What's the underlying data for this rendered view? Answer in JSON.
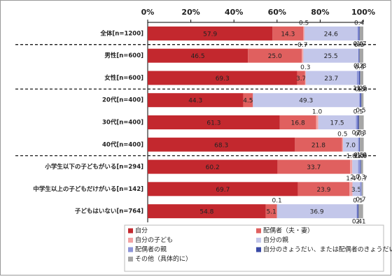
{
  "chart_data": {
    "type": "stacked-bar-horizontal",
    "categories": [
      "全体[n=1200]",
      "男性[n=600]",
      "女性[n=600]",
      "20代[n=400]",
      "30代[n=400]",
      "40代[n=400]",
      "小学生以下の子どもがいる[n=294]",
      "中学生以上の子どもだけがいる[n=142]",
      "子どもはいない[n=764]"
    ],
    "series": [
      {
        "name": "自分",
        "color": "#c3282e",
        "values": [
          57.9,
          46.5,
          69.3,
          44.3,
          61.3,
          68.3,
          60.2,
          69.7,
          54.8
        ]
      },
      {
        "name": "配偶者（夫・妻）",
        "color": "#e0605f",
        "values": [
          14.3,
          25.0,
          3.7,
          4.5,
          16.8,
          21.8,
          33.7,
          23.9,
          5.1
        ],
        "value_labels": [
          "14.3",
          "25.0",
          "3.7",
          "4.5",
          "16.8",
          "21.8",
          "33.7",
          "23.9",
          "5.1"
        ]
      },
      {
        "name": "自分の子ども",
        "color": "#f2a3a3",
        "values": [
          0.5,
          0.7,
          0.3,
          null,
          1.0,
          0.5,
          1.0,
          1.4,
          0.1
        ],
        "value_labels": [
          "0.5",
          "0.7",
          "0.3",
          null,
          "1.0",
          "0.5",
          "1.0",
          "1.4",
          "0.1"
        ]
      },
      {
        "name": "自分の親",
        "color": "#c3c7ea",
        "values": [
          24.6,
          25.5,
          23.7,
          49.3,
          17.5,
          7.0,
          2.7,
          3.5,
          36.9
        ],
        "value_labels": [
          "24.6",
          "25.5",
          "23.7",
          "49.3",
          "17.5",
          "7.0",
          "2.7",
          "3.5",
          "36.9"
        ]
      },
      {
        "name": "配偶者の親",
        "color": "#8d95d8",
        "values": [
          0.6,
          0.2,
          1.0,
          0.5,
          0.8,
          0.5,
          1.0,
          0.7,
          0.4
        ],
        "value_labels": [
          "0.6",
          "0.2",
          "1.0",
          "0.5",
          "0.8",
          "0.5",
          "1.0",
          "0.7",
          "0.4"
        ]
      },
      {
        "name": "自分のきょうだい、または配偶者のきょうだい",
        "color": "#3a4aa6",
        "values": [
          0.4,
          0.3,
          0.5,
          0.5,
          0.5,
          0.3,
          0.3,
          null,
          0.5
        ]
      },
      {
        "name": "その他（具体的に）",
        "color": "#a6a6a6",
        "values": [
          1.7,
          1.8,
          1.5,
          1.0,
          2.3,
          1.8,
          1.0,
          0.7,
          2.1
        ],
        "value_labels": [
          "1.7",
          "1.8",
          "1.5",
          "1.0",
          "2.3",
          "1.8",
          "1.0",
          "0.7",
          "2.1"
        ]
      }
    ],
    "xlim": [
      0,
      100
    ],
    "xticks": [
      {
        "value": 0,
        "label": "0%"
      },
      {
        "value": 20,
        "label": "20%"
      },
      {
        "value": 40,
        "label": "40%"
      },
      {
        "value": 60,
        "label": "60%"
      },
      {
        "value": 80,
        "label": "80%"
      },
      {
        "value": 100,
        "label": "100%"
      }
    ]
  }
}
